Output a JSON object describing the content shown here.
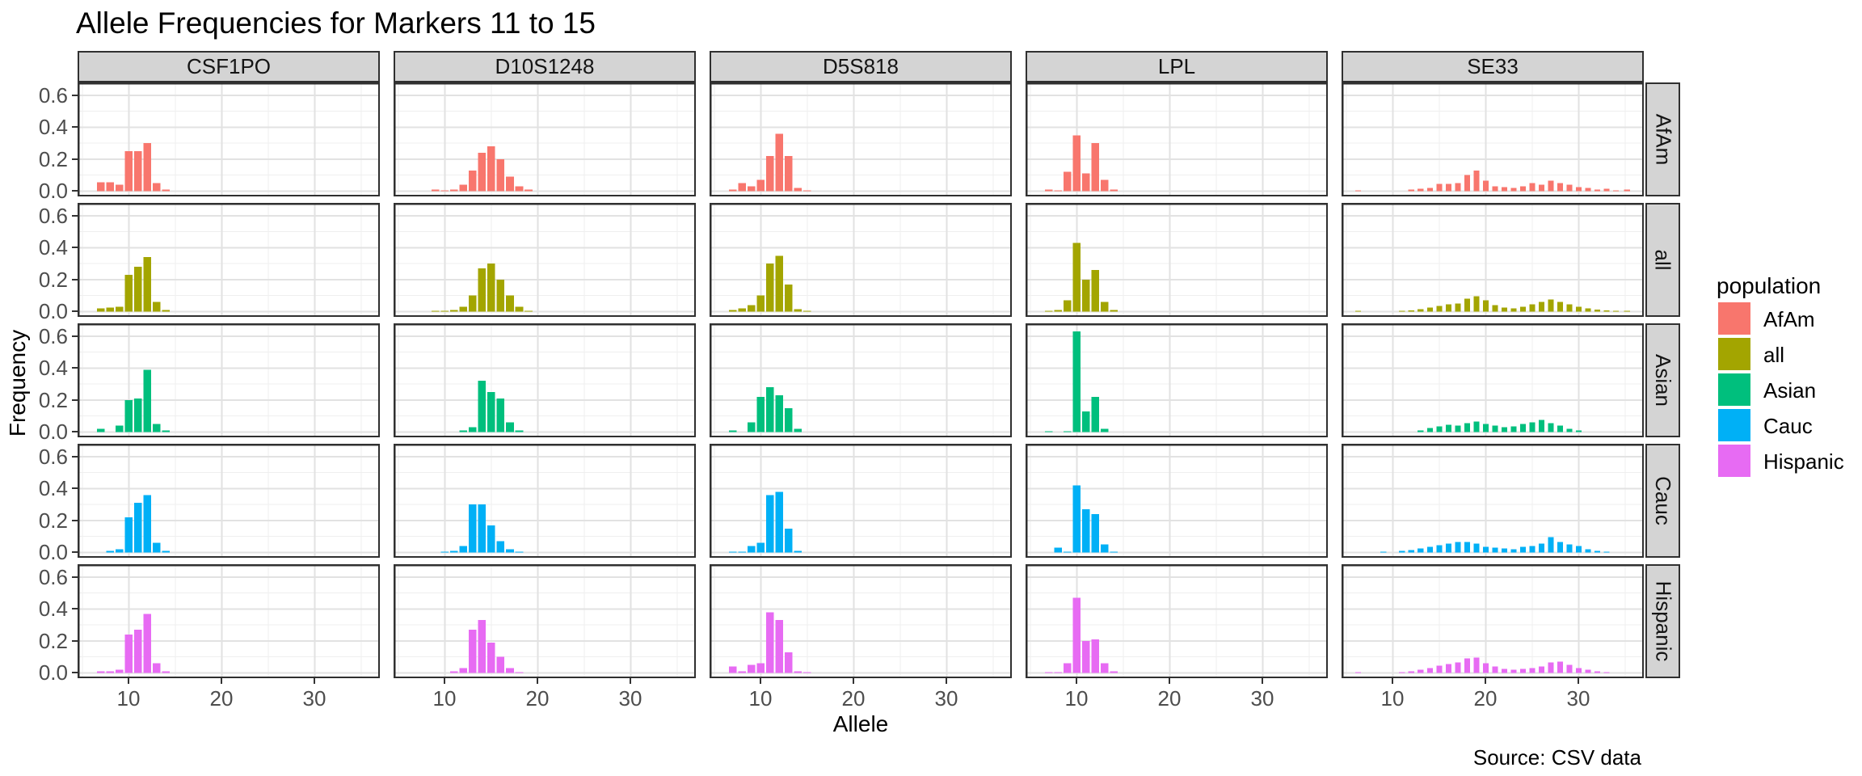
{
  "title": "Allele Frequencies for Markers 11 to 15",
  "source_note": "Source: CSV data",
  "axes": {
    "x_label": "Allele",
    "y_label": "Frequency",
    "x_tick_labels": [
      "10",
      "20",
      "30"
    ],
    "y_tick_labels": [
      "0.0",
      "0.2",
      "0.4",
      "0.6"
    ]
  },
  "legend": {
    "title": "population",
    "entries": [
      {
        "label": "AfAm",
        "color": "#F8766D"
      },
      {
        "label": "all",
        "color": "#A3A500"
      },
      {
        "label": "Asian",
        "color": "#00BF7D"
      },
      {
        "label": "Cauc",
        "color": "#00B0F6"
      },
      {
        "label": "Hispanic",
        "color": "#E76BF3"
      }
    ]
  },
  "chart_data": {
    "type": "bar",
    "title": "Allele Frequencies for Markers 11 to 15",
    "xlabel": "Allele",
    "ylabel": "Frequency",
    "x_ticks": [
      10,
      20,
      30
    ],
    "y_ticks": [
      0.0,
      0.2,
      0.4,
      0.6
    ],
    "x_range": [
      4.5,
      37
    ],
    "y_range": [
      -0.033,
      0.68
    ],
    "grid": "on",
    "legend_position": "right",
    "facet_columns": [
      "CSF1PO",
      "D10S1248",
      "D5S818",
      "LPL",
      "SE33"
    ],
    "facet_rows": [
      "AfAm",
      "all",
      "Asian",
      "Cauc",
      "Hispanic"
    ],
    "panels": [
      {
        "marker": "CSF1PO",
        "population": "AfAm",
        "alleles": [
          7,
          8,
          9,
          10,
          11,
          12,
          13,
          14
        ],
        "freqs": [
          0.055,
          0.055,
          0.04,
          0.25,
          0.25,
          0.3,
          0.05,
          0.01
        ]
      },
      {
        "marker": "D10S1248",
        "population": "AfAm",
        "alleles": [
          9,
          10,
          11,
          12,
          13,
          14,
          15,
          16,
          17,
          18,
          19
        ],
        "freqs": [
          0.01,
          0.005,
          0.01,
          0.04,
          0.13,
          0.24,
          0.28,
          0.2,
          0.09,
          0.03,
          0.01
        ]
      },
      {
        "marker": "D5S818",
        "population": "AfAm",
        "alleles": [
          7,
          8,
          9,
          10,
          11,
          12,
          13,
          14,
          15
        ],
        "freqs": [
          0.01,
          0.05,
          0.03,
          0.07,
          0.22,
          0.36,
          0.22,
          0.02,
          0.005
        ]
      },
      {
        "marker": "LPL",
        "population": "AfAm",
        "alleles": [
          7,
          8,
          9,
          10,
          11,
          12,
          13,
          14
        ],
        "freqs": [
          0.01,
          0.005,
          0.12,
          0.35,
          0.11,
          0.3,
          0.07,
          0.01
        ]
      },
      {
        "marker": "SE33",
        "population": "AfAm",
        "alleles": [
          6.3,
          12,
          13,
          14,
          15,
          16,
          17,
          18,
          19,
          20,
          21,
          22,
          23,
          24,
          25,
          26,
          27,
          28,
          29,
          30,
          31,
          32,
          33,
          34,
          35.2
        ],
        "freqs": [
          0.005,
          0.01,
          0.015,
          0.02,
          0.045,
          0.045,
          0.05,
          0.1,
          0.13,
          0.065,
          0.03,
          0.025,
          0.02,
          0.03,
          0.05,
          0.04,
          0.065,
          0.05,
          0.04,
          0.025,
          0.02,
          0.01,
          0.015,
          0.005,
          0.01
        ]
      },
      {
        "marker": "CSF1PO",
        "population": "all",
        "alleles": [
          7,
          8,
          9,
          10,
          11,
          12,
          13,
          14
        ],
        "freqs": [
          0.02,
          0.025,
          0.03,
          0.23,
          0.28,
          0.34,
          0.06,
          0.01
        ]
      },
      {
        "marker": "D10S1248",
        "population": "all",
        "alleles": [
          9,
          10,
          11,
          12,
          13,
          14,
          15,
          16,
          17,
          18,
          19
        ],
        "freqs": [
          0.005,
          0.005,
          0.01,
          0.03,
          0.1,
          0.27,
          0.3,
          0.2,
          0.1,
          0.03,
          0.005
        ]
      },
      {
        "marker": "D5S818",
        "population": "all",
        "alleles": [
          7,
          8,
          9,
          10,
          11,
          12,
          13,
          14,
          15
        ],
        "freqs": [
          0.01,
          0.02,
          0.04,
          0.1,
          0.3,
          0.35,
          0.17,
          0.015,
          0.005
        ]
      },
      {
        "marker": "LPL",
        "population": "all",
        "alleles": [
          7,
          8,
          9,
          10,
          11,
          12,
          13,
          14
        ],
        "freqs": [
          0.005,
          0.01,
          0.07,
          0.43,
          0.2,
          0.26,
          0.06,
          0.01
        ]
      },
      {
        "marker": "SE33",
        "population": "all",
        "alleles": [
          6.3,
          11,
          12,
          13,
          14,
          15,
          16,
          17,
          18,
          19,
          20,
          21,
          22,
          23,
          24,
          25,
          26,
          27,
          28,
          29,
          30,
          31,
          32,
          33,
          34,
          35.2
        ],
        "freqs": [
          0.003,
          0.005,
          0.008,
          0.015,
          0.025,
          0.035,
          0.045,
          0.05,
          0.08,
          0.095,
          0.07,
          0.04,
          0.025,
          0.02,
          0.03,
          0.045,
          0.06,
          0.075,
          0.06,
          0.045,
          0.03,
          0.02,
          0.012,
          0.008,
          0.005,
          0.003
        ]
      },
      {
        "marker": "CSF1PO",
        "population": "Asian",
        "alleles": [
          7,
          9,
          10,
          11,
          12,
          13,
          14
        ],
        "freqs": [
          0.02,
          0.04,
          0.2,
          0.21,
          0.39,
          0.05,
          0.01
        ]
      },
      {
        "marker": "D10S1248",
        "population": "Asian",
        "alleles": [
          12,
          13,
          14,
          15,
          16,
          17,
          18
        ],
        "freqs": [
          0.01,
          0.03,
          0.32,
          0.25,
          0.21,
          0.06,
          0.01
        ]
      },
      {
        "marker": "D5S818",
        "population": "Asian",
        "alleles": [
          7,
          9,
          10,
          11,
          12,
          13,
          14
        ],
        "freqs": [
          0.01,
          0.06,
          0.22,
          0.28,
          0.23,
          0.15,
          0.02
        ]
      },
      {
        "marker": "LPL",
        "population": "Asian",
        "alleles": [
          7,
          9,
          10,
          11,
          12,
          13
        ],
        "freqs": [
          0.005,
          0.005,
          0.63,
          0.13,
          0.22,
          0.02
        ]
      },
      {
        "marker": "SE33",
        "population": "Asian",
        "alleles": [
          13,
          14,
          15,
          16,
          17,
          18,
          19,
          20,
          21,
          22,
          23,
          24,
          25,
          26,
          27,
          28,
          29,
          30
        ],
        "freqs": [
          0.01,
          0.025,
          0.035,
          0.045,
          0.04,
          0.055,
          0.065,
          0.05,
          0.04,
          0.03,
          0.035,
          0.05,
          0.06,
          0.075,
          0.055,
          0.04,
          0.02,
          0.01
        ]
      },
      {
        "marker": "CSF1PO",
        "population": "Cauc",
        "alleles": [
          8,
          9,
          10,
          11,
          12,
          13,
          14
        ],
        "freqs": [
          0.01,
          0.02,
          0.22,
          0.31,
          0.36,
          0.06,
          0.01
        ]
      },
      {
        "marker": "D10S1248",
        "population": "Cauc",
        "alleles": [
          10,
          11,
          12,
          13,
          14,
          15,
          16,
          17,
          18
        ],
        "freqs": [
          0.005,
          0.01,
          0.04,
          0.3,
          0.3,
          0.17,
          0.07,
          0.02,
          0.005
        ]
      },
      {
        "marker": "D5S818",
        "population": "Cauc",
        "alleles": [
          7,
          8,
          9,
          10,
          11,
          12,
          13,
          14
        ],
        "freqs": [
          0.005,
          0.005,
          0.04,
          0.06,
          0.36,
          0.38,
          0.15,
          0.01
        ]
      },
      {
        "marker": "LPL",
        "population": "Cauc",
        "alleles": [
          8,
          9,
          10,
          11,
          12,
          13,
          14
        ],
        "freqs": [
          0.03,
          0.005,
          0.42,
          0.27,
          0.24,
          0.05,
          0.005
        ]
      },
      {
        "marker": "SE33",
        "population": "Cauc",
        "alleles": [
          9,
          11,
          12,
          13,
          14,
          15,
          16,
          17,
          18,
          19,
          20,
          21,
          22,
          23,
          24,
          25,
          26,
          27,
          28,
          29,
          30,
          31,
          32,
          33
        ],
        "freqs": [
          0.003,
          0.01,
          0.015,
          0.025,
          0.035,
          0.045,
          0.055,
          0.065,
          0.065,
          0.055,
          0.035,
          0.03,
          0.025,
          0.02,
          0.035,
          0.04,
          0.055,
          0.095,
          0.065,
          0.05,
          0.04,
          0.02,
          0.01,
          0.005
        ]
      },
      {
        "marker": "CSF1PO",
        "population": "Hispanic",
        "alleles": [
          7,
          8,
          9,
          10,
          11,
          12,
          13,
          14
        ],
        "freqs": [
          0.01,
          0.01,
          0.02,
          0.24,
          0.27,
          0.37,
          0.06,
          0.01
        ]
      },
      {
        "marker": "D10S1248",
        "population": "Hispanic",
        "alleles": [
          11,
          12,
          13,
          14,
          15,
          16,
          17,
          18
        ],
        "freqs": [
          0.01,
          0.03,
          0.27,
          0.33,
          0.19,
          0.1,
          0.03,
          0.005
        ]
      },
      {
        "marker": "D5S818",
        "population": "Hispanic",
        "alleles": [
          7,
          8,
          9,
          10,
          11,
          12,
          13,
          14,
          15
        ],
        "freqs": [
          0.04,
          0.01,
          0.05,
          0.06,
          0.38,
          0.33,
          0.13,
          0.01,
          0.005
        ]
      },
      {
        "marker": "LPL",
        "population": "Hispanic",
        "alleles": [
          7,
          8,
          9,
          10,
          11,
          12,
          13,
          14
        ],
        "freqs": [
          0.005,
          0.005,
          0.06,
          0.47,
          0.2,
          0.21,
          0.06,
          0.01
        ]
      },
      {
        "marker": "SE33",
        "population": "Hispanic",
        "alleles": [
          6.3,
          11,
          12,
          13,
          14,
          15,
          16,
          17,
          18,
          19,
          20,
          21,
          22,
          23,
          24,
          25,
          26,
          27,
          28,
          29,
          30,
          31,
          32,
          33
        ],
        "freqs": [
          0.005,
          0.005,
          0.01,
          0.02,
          0.03,
          0.045,
          0.055,
          0.065,
          0.09,
          0.095,
          0.06,
          0.04,
          0.025,
          0.02,
          0.025,
          0.03,
          0.04,
          0.065,
          0.07,
          0.05,
          0.03,
          0.02,
          0.01,
          0.005
        ]
      }
    ]
  }
}
